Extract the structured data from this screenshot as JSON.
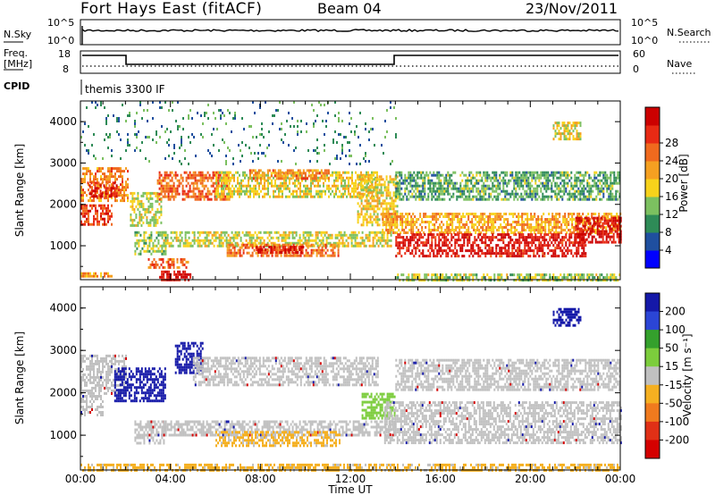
{
  "header": {
    "station": "Fort Hays East (fitACF)",
    "beam": "Beam 04",
    "date": "23/Nov/2011"
  },
  "top_panels": {
    "sky": {
      "left_label": "N.Sky",
      "left_ticks": [
        "10^5",
        "10^0"
      ],
      "right_label": "N.Search",
      "right_ticks": [
        "10^5",
        "10^0"
      ]
    },
    "freq": {
      "left_label_1": "Freq.",
      "left_label_2": "[MHz]",
      "left_ticks": [
        "18",
        "8"
      ],
      "right_label": "Nave",
      "right_ticks": [
        "60",
        "0"
      ]
    },
    "cpid": {
      "label": "CPID",
      "text": "themis 3300 IF"
    }
  },
  "colors": {
    "power": [
      "#0000ff",
      "#1f4f9f",
      "#2e8b57",
      "#7cc060",
      "#f7d21b",
      "#f5a021",
      "#f06a1e",
      "#e82a14",
      "#cc0000"
    ],
    "velocity": [
      "#1418a8",
      "#2b45d6",
      "#34a02c",
      "#7ccd3c",
      "#c0c0c0",
      "#f5b021",
      "#f07a1e",
      "#e03016",
      "#d40000"
    ]
  },
  "chart_data": [
    {
      "type": "heatmap",
      "panel": "power",
      "xlabel": "",
      "ylabel": "Slant Range [km]",
      "x_ticks": [],
      "y_ticks": [
        "1000",
        "2000",
        "3000",
        "4000"
      ],
      "xlim": [
        0,
        24
      ],
      "ylim": [
        180,
        4500
      ],
      "colorbar": {
        "label": "Power [dB]",
        "ticks": [
          "4",
          "8",
          "12",
          "16",
          "20",
          "24",
          "28"
        ],
        "range": [
          0,
          30
        ]
      },
      "bands": [
        {
          "t0": 0.0,
          "t1": 2.1,
          "r0": 2100,
          "r1": 2900,
          "value": 20
        },
        {
          "t0": 0.0,
          "t1": 1.4,
          "r0": 1500,
          "r1": 2000,
          "value": 24
        },
        {
          "t0": 0.3,
          "t1": 1.6,
          "r0": 2200,
          "r1": 2550,
          "value": 26
        },
        {
          "t0": 0.0,
          "t1": 1.4,
          "r0": 250,
          "r1": 360,
          "value": 18
        },
        {
          "t0": 2.2,
          "t1": 3.6,
          "r0": 1500,
          "r1": 2300,
          "value": 14
        },
        {
          "t0": 2.4,
          "t1": 3.8,
          "r0": 800,
          "r1": 1350,
          "value": 12
        },
        {
          "t0": 3.0,
          "t1": 4.8,
          "r0": 500,
          "r1": 700,
          "value": 22
        },
        {
          "t0": 3.5,
          "t1": 4.9,
          "r0": 180,
          "r1": 400,
          "value": 28
        },
        {
          "t0": 3.4,
          "t1": 6.6,
          "r0": 2100,
          "r1": 2800,
          "value": 22
        },
        {
          "t0": 3.6,
          "t1": 13.8,
          "r0": 1000,
          "r1": 1350,
          "value": 14
        },
        {
          "t0": 6.5,
          "t1": 11.5,
          "r0": 750,
          "r1": 1050,
          "value": 21
        },
        {
          "t0": 7.8,
          "t1": 9.9,
          "r0": 850,
          "r1": 1000,
          "value": 27
        },
        {
          "t0": 6.0,
          "t1": 13.2,
          "r0": 2200,
          "r1": 2800,
          "value": 15
        },
        {
          "t0": 7.5,
          "t1": 11.0,
          "r0": 2600,
          "r1": 2850,
          "value": 20
        },
        {
          "t0": 12.3,
          "t1": 14.1,
          "r0": 1500,
          "r1": 2700,
          "value": 16
        },
        {
          "t0": 13.4,
          "t1": 24.0,
          "r0": 1300,
          "r1": 1800,
          "value": 18
        },
        {
          "t0": 14.0,
          "t1": 22.5,
          "r0": 750,
          "r1": 1300,
          "value": 27
        },
        {
          "t0": 22.0,
          "t1": 24.0,
          "r0": 1100,
          "r1": 1700,
          "value": 28
        },
        {
          "t0": 14.0,
          "t1": 24.0,
          "r0": 2100,
          "r1": 2800,
          "value": 10
        },
        {
          "t0": 14.0,
          "t1": 24.0,
          "r0": 200,
          "r1": 330,
          "value": 13
        },
        {
          "t0": 21.0,
          "t1": 22.2,
          "r0": 3600,
          "r1": 4000,
          "value": 15
        },
        {
          "t0": 0.0,
          "t1": 14.0,
          "r0": 3000,
          "r1": 4500,
          "value": 8
        }
      ]
    },
    {
      "type": "heatmap",
      "panel": "velocity",
      "xlabel": "Time UT",
      "ylabel": "Slant Range [km]",
      "x_ticks": [
        "00:00",
        "04:00",
        "08:00",
        "12:00",
        "16:00",
        "20:00",
        "00:00"
      ],
      "y_ticks": [
        "1000",
        "2000",
        "3000",
        "4000"
      ],
      "xlim": [
        0,
        24
      ],
      "ylim": [
        180,
        4500
      ],
      "colorbar": {
        "label": "Velocity [m s⁻¹]",
        "ticks": [
          "200",
          "100",
          "50",
          "15",
          "-15",
          "-50",
          "-100",
          "-200"
        ],
        "range": [
          -250,
          250
        ]
      },
      "bands": [
        {
          "t0": 0.0,
          "t1": 2.0,
          "r0": 2000,
          "r1": 2900,
          "value": 0
        },
        {
          "t0": 1.5,
          "t1": 3.8,
          "r0": 1800,
          "r1": 2600,
          "value": 240
        },
        {
          "t0": 4.2,
          "t1": 5.4,
          "r0": 2500,
          "r1": 3200,
          "value": 240
        },
        {
          "t0": 2.4,
          "t1": 3.8,
          "r0": 800,
          "r1": 1350,
          "value": 0
        },
        {
          "t0": 3.6,
          "t1": 14.0,
          "r0": 1000,
          "r1": 1350,
          "value": 0
        },
        {
          "t0": 6.0,
          "t1": 11.5,
          "r0": 750,
          "r1": 1100,
          "value": -40
        },
        {
          "t0": 5.0,
          "t1": 13.2,
          "r0": 2200,
          "r1": 2850,
          "value": 0
        },
        {
          "t0": 12.5,
          "t1": 14.0,
          "r0": 1400,
          "r1": 2000,
          "value": 60
        },
        {
          "t0": 13.5,
          "t1": 24.0,
          "r0": 800,
          "r1": 1800,
          "value": 0
        },
        {
          "t0": 14.0,
          "t1": 24.0,
          "r0": 2100,
          "r1": 2800,
          "value": 0
        },
        {
          "t0": 0.0,
          "t1": 1.0,
          "r0": 1500,
          "r1": 1950,
          "value": 0
        },
        {
          "t0": 21.0,
          "t1": 22.2,
          "r0": 3600,
          "r1": 4000,
          "value": 240
        },
        {
          "t0": 0.0,
          "t1": 24.0,
          "r0": 200,
          "r1": 330,
          "value": -40
        }
      ]
    }
  ]
}
